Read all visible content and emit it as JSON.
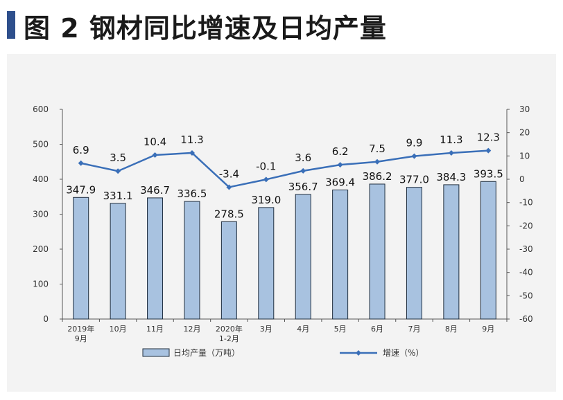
{
  "title": {
    "text": "图 2  钢材同比增速及日均产量"
  },
  "colors": {
    "accent": "#2e4f8c",
    "panel_bg": "#f3f3f3",
    "bar_fill": "#a8c2e0",
    "bar_stroke": "#1f2d3d",
    "line": "#3a6fb8"
  },
  "chart_data": {
    "type": "bar",
    "categories": [
      [
        "2019年",
        "9月"
      ],
      [
        "10月"
      ],
      [
        "11月"
      ],
      [
        "12月"
      ],
      [
        "2020年",
        "1-2月"
      ],
      [
        "3月"
      ],
      [
        "4月"
      ],
      [
        "5月"
      ],
      [
        "6月"
      ],
      [
        "7月"
      ],
      [
        "8月"
      ],
      [
        "9月"
      ]
    ],
    "series": [
      {
        "name": "日均产量（万吨）",
        "type": "bar",
        "axis": "left",
        "values": [
          347.9,
          331.1,
          346.7,
          336.5,
          278.5,
          319.0,
          356.7,
          369.4,
          386.2,
          377.0,
          384.3,
          393.5
        ],
        "labels": [
          "347.9",
          "331.1",
          "346.7",
          "336.5",
          "278.5",
          "319.0",
          "356.7",
          "369.4",
          "386.2",
          "377.0",
          "384.3",
          "393.5"
        ]
      },
      {
        "name": "增速（%）",
        "type": "line",
        "axis": "right",
        "values": [
          6.9,
          3.5,
          10.4,
          11.3,
          -3.4,
          -0.1,
          3.6,
          6.2,
          7.5,
          9.9,
          11.3,
          12.3
        ],
        "labels": [
          "6.9",
          "3.5",
          "10.4",
          "11.3",
          "-3.4",
          "-0.1",
          "3.6",
          "6.2",
          "7.5",
          "9.9",
          "11.3",
          "12.3"
        ]
      }
    ],
    "y_left": {
      "min": 0,
      "max": 600,
      "ticks": [
        "0",
        "100",
        "200",
        "300",
        "400",
        "500",
        "600"
      ]
    },
    "y_right": {
      "min": -60,
      "max": 30,
      "ticks": [
        "-60",
        "-50",
        "-40",
        "-30",
        "-20",
        "-10",
        "0",
        "10",
        "20",
        "30"
      ]
    },
    "legend": {
      "placement": "bottom"
    },
    "grid": false
  }
}
